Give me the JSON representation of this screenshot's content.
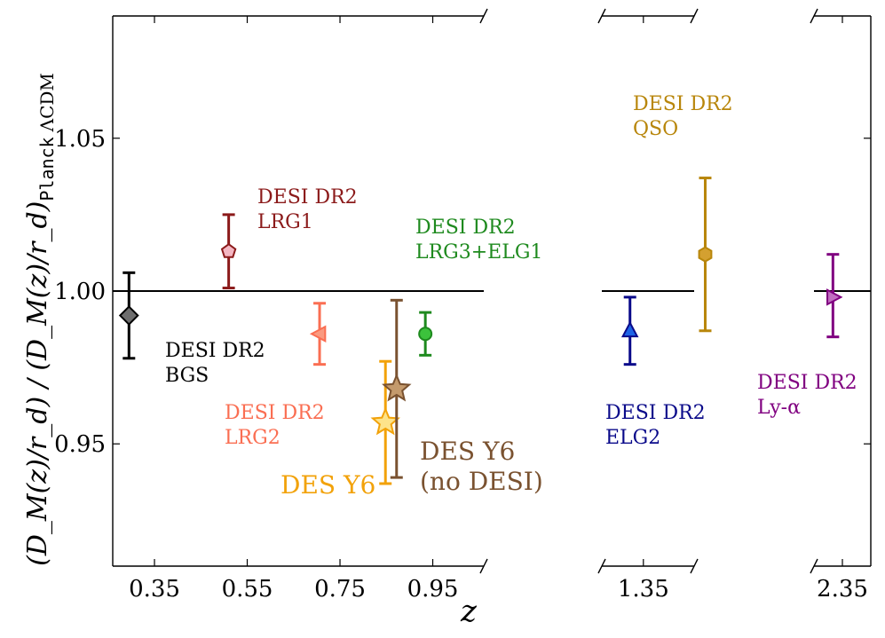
{
  "chart_data": {
    "type": "scatter",
    "ylim": [
      0.91,
      1.09
    ],
    "yticks": [
      0.95,
      1.0,
      1.05
    ],
    "ytick_labels": [
      "0.95",
      "1.00",
      "1.05"
    ],
    "reference_y": 1.0,
    "xlabel": "z",
    "ylabel": {
      "main": "(D_M(z)/r_d) / (D_M(z)/r_d)",
      "subscript_mono": "Planck",
      "subscript_tail": "ΛCDM"
    },
    "panels": [
      {
        "xlim": [
          0.26,
          1.06
        ],
        "xticks": [
          0.35,
          0.55,
          0.75,
          0.95
        ],
        "xtick_labels": [
          "0.35",
          "0.55",
          "0.75",
          "0.95"
        ]
      },
      {
        "xlim": [
          1.26,
          1.46
        ],
        "xticks": [
          1.35
        ],
        "xtick_labels": [
          "1.35"
        ]
      },
      {
        "xlim": [
          2.29,
          2.41
        ],
        "xticks": [
          2.35
        ],
        "xtick_labels": [
          "2.35"
        ]
      }
    ],
    "series": [
      {
        "name": "DESI DR2 BGS",
        "panel": 0,
        "x": 0.295,
        "y": 0.992,
        "yerr": [
          0.014,
          0.014
        ],
        "marker": "diamond",
        "color": "#000000",
        "fill": "#6e6e6e",
        "label_lines": [
          "DESI DR2",
          "BGS"
        ]
      },
      {
        "name": "DESI DR2 LRG1",
        "panel": 0,
        "x": 0.51,
        "y": 1.013,
        "yerr": [
          0.012,
          0.012
        ],
        "marker": "pentagon",
        "color": "#8b1a1a",
        "fill": "#f4b6c2",
        "label_lines": [
          "DESI DR2",
          "LRG1"
        ]
      },
      {
        "name": "DESI DR2 LRG2",
        "panel": 0,
        "x": 0.706,
        "y": 0.986,
        "yerr": [
          0.01,
          0.01
        ],
        "marker": "triangle-left",
        "color": "#fa6e52",
        "fill": "#fa9a80",
        "label_lines": [
          "DESI DR2",
          "LRG2"
        ]
      },
      {
        "name": "DESI DR2 LRG3+ELG1",
        "panel": 0,
        "x": 0.934,
        "y": 0.986,
        "yerr": [
          0.007,
          0.007
        ],
        "marker": "circle",
        "color": "#1e8a1e",
        "fill": "#3cc23c",
        "label_lines": [
          "DESI DR2",
          "LRG3+ELG1"
        ]
      },
      {
        "name": "DES Y6",
        "panel": 0,
        "x": 0.848,
        "y": 0.957,
        "yerr": [
          0.02,
          0.02
        ],
        "marker": "star",
        "color": "#f2a20a",
        "fill": "#fde38a",
        "label_lines": [
          "DES Y6"
        ]
      },
      {
        "name": "DES Y6 (no DESI)",
        "panel": 0,
        "x": 0.872,
        "y": 0.968,
        "yerr": [
          0.029,
          0.029
        ],
        "marker": "star",
        "color": "#7a5230",
        "fill": "#c49a6c",
        "label_lines": [
          "DES Y6",
          "(no DESI)"
        ]
      },
      {
        "name": "DESI DR2 ELG2",
        "panel": 1,
        "x": 1.321,
        "y": 0.987,
        "yerr": [
          0.011,
          0.011
        ],
        "marker": "triangle-up",
        "color": "#0a0a8a",
        "fill": "#1e64e6",
        "label_lines": [
          "DESI DR2",
          "ELG2"
        ]
      },
      {
        "name": "DESI DR2 QSO",
        "panel": 1,
        "x": 1.484,
        "y": 1.012,
        "yerr": [
          0.025,
          0.025
        ],
        "marker": "hexagon",
        "color": "#b8860b",
        "fill": "#d4a030",
        "label_lines": [
          "DESI DR2",
          "QSO"
        ]
      },
      {
        "name": "DESI DR2 Ly-α",
        "panel": 2,
        "x": 2.33,
        "y": 0.998,
        "yerr": [
          0.013,
          0.014
        ],
        "marker": "triangle-right",
        "color": "#800080",
        "fill": "#c06ec0",
        "label_lines": [
          "DESI DR2",
          "Ly-α"
        ]
      }
    ]
  }
}
